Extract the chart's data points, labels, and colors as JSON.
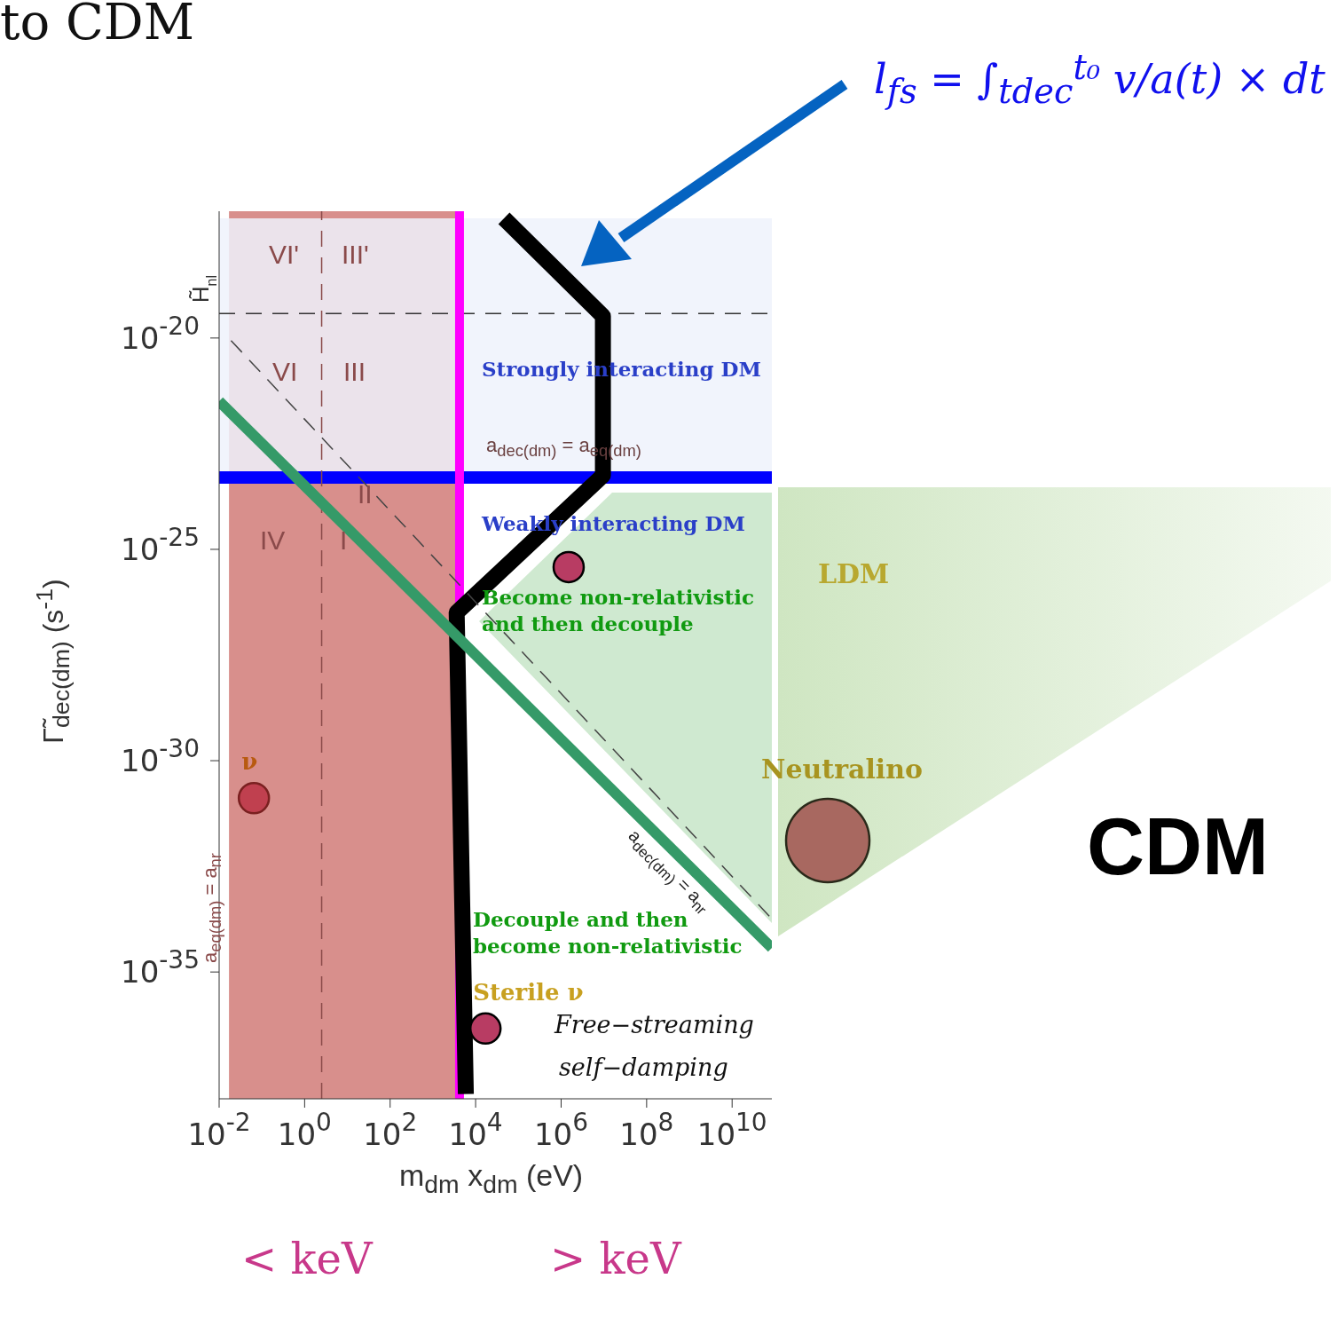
{
  "chart_data": {
    "type": "scatter",
    "title": "to CDM",
    "xlabel": "m$_{dm}$ x$_{dm}$ (eV)",
    "ylabel": "Γ̃$_{dec(dm)}$ (s$^{-1}$)",
    "log": "xy",
    "xlim": [
      0.01,
      85000000000.0
    ],
    "ylim": [
      1e-38,
      1e-17
    ],
    "xticks": [
      {
        "value": 0.01,
        "label": "10$^{-2}$"
      },
      {
        "value": 1,
        "label": "10$^{0}$"
      },
      {
        "value": 100,
        "label": "10$^{2}$"
      },
      {
        "value": 10000,
        "label": "10$^{4}$"
      },
      {
        "value": 1000000,
        "label": "10$^{6}$"
      },
      {
        "value": 100000000,
        "label": "10$^{8}$"
      },
      {
        "value": 10000000000,
        "label": "10$^{10}$"
      }
    ],
    "yticks": [
      {
        "value": 1e-20,
        "label": "10$^{-20}$"
      },
      {
        "value": 1e-25,
        "label": "10$^{-25}$"
      },
      {
        "value": 1e-30,
        "label": "10$^{-30}$"
      },
      {
        "value": 1e-35,
        "label": "10$^{-35}$"
      }
    ],
    "grid": false,
    "legend": false,
    "series": [
      {
        "type": "line",
        "color": "#000000",
        "x": [
          46000,
          9500000,
          9500000,
          3600,
          5900
        ],
        "values": [
          6.8e-18,
          3.3e-20,
          5.6e-24,
          3.2e-27,
          1.3e-38
        ]
      },
      {
        "type": "line",
        "color": "#359a68",
        "x": [
          0.01,
          85000000000.0
        ],
        "values": [
          3.2e-22,
          3.7e-35
        ]
      },
      {
        "type": "line",
        "color": "#444444",
        "line_style": "dashed",
        "x": [
          0.019,
          85000000000.0
        ],
        "values": [
          8.7e-21,
          1.8e-34
        ]
      },
      {
        "name": "ν",
        "color": "#c0404f",
        "marker": "circle",
        "x": [
          0.065
        ],
        "values": [
          1.3e-31
        ]
      },
      {
        "color": "#b83c63",
        "marker": "circle",
        "x": [
          1500000
        ],
        "values": [
          3.8e-26
        ]
      },
      {
        "name": "Sterile ν",
        "color": "#b83c63",
        "marker": "circle",
        "x": [
          17000
        ],
        "values": [
          4.6e-37
        ]
      }
    ],
    "bands": [
      {
        "axis": "x",
        "from": 0.017,
        "to": 4200,
        "color": "#d4837f"
      },
      {
        "axis": "y",
        "from": 5e-24,
        "to": 6.8e-18,
        "color": "#eef2fb"
      }
    ],
    "ref_lines": [
      {
        "axis": "y",
        "value": 3.8e-20,
        "label": "H̃$_{nl}$",
        "line_style": "dashed",
        "color": "#333333"
      },
      {
        "axis": "y",
        "value": 5e-24,
        "color": "#0000ff"
      },
      {
        "axis": "x",
        "value": 4200,
        "color": "#ff00ff"
      },
      {
        "axis": "x",
        "value": 2.5,
        "line_style": "dashed",
        "color": "#8a4a4a"
      }
    ],
    "annotations": [
      "Strongly interacting DM",
      "Weakly interacting DM",
      "Become non-relativistic",
      "and then decouple",
      "Decouple and then",
      "become non-relativistic",
      "Free−streaming",
      "self−damping",
      "VI'",
      "III'",
      "VI",
      "III",
      "IV",
      "I",
      "II",
      "a$_{dec(dm)}$ = a$_{eq(dm)}$",
      "a$_{eq(dm)}$ = a$_{nr}$",
      "a$_{dec(dm)}$ = a$_{nr}$",
      "LDM",
      "Neutralino",
      "CDM",
      "< keV",
      "> keV",
      "l$_{fs}$ = ∫$_{tdec}$$^{t₀}$ v/a(t) × dt"
    ]
  }
}
